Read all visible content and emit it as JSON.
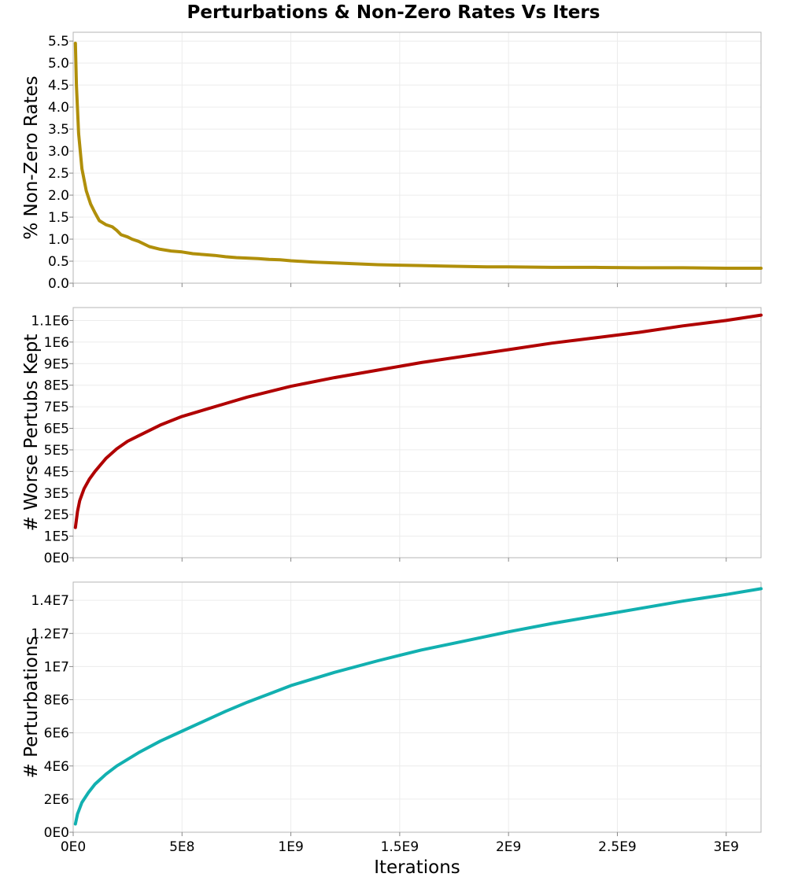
{
  "colors": {
    "nonzero": "#b08f0a",
    "worse": "#b00000",
    "perturb": "#12b0b0"
  },
  "chart_data": {
    "type": "line",
    "title": "Perturbations & Non-Zero Rates Vs Iters",
    "xlabel": "Iterations",
    "xlim": [
      0,
      3160000000
    ],
    "xticks": [
      0,
      500000000,
      1000000000,
      1500000000,
      2000000000,
      2500000000,
      3000000000
    ],
    "xtick_labels": [
      "0E0",
      "5E8",
      "1E9",
      "1.5E9",
      "2E9",
      "2.5E9",
      "3E9"
    ],
    "grid": true,
    "panels": [
      {
        "ylabel": "% Non-Zero Rates",
        "ylim": [
          0,
          5.7
        ],
        "yticks": [
          0,
          0.5,
          1,
          1.5,
          2,
          2.5,
          3,
          3.5,
          4,
          4.5,
          5,
          5.5
        ],
        "ytick_labels": [
          "0.0",
          "0.5",
          "1.0",
          "1.5",
          "2.0",
          "2.5",
          "3.0",
          "3.5",
          "4.0",
          "4.5",
          "5.0",
          "5.5"
        ],
        "series": [
          {
            "color_key": "nonzero",
            "x": [
              10000000,
              15000000,
              25000000,
              40000000,
              60000000,
              80000000,
              100000000,
              120000000,
              150000000,
              180000000,
              200000000,
              220000000,
              250000000,
              270000000,
              300000000,
              350000000,
              400000000,
              450000000,
              500000000,
              550000000,
              600000000,
              650000000,
              700000000,
              750000000,
              800000000,
              850000000,
              900000000,
              950000000,
              1000000000,
              1100000000,
              1200000000,
              1300000000,
              1400000000,
              1500000000,
              1600000000,
              1700000000,
              1800000000,
              1900000000,
              2000000000,
              2200000000,
              2400000000,
              2600000000,
              2800000000,
              3000000000,
              3160000000
            ],
            "y": [
              5.45,
              4.5,
              3.4,
              2.6,
              2.1,
              1.8,
              1.6,
              1.42,
              1.33,
              1.28,
              1.2,
              1.1,
              1.05,
              1.0,
              0.95,
              0.83,
              0.77,
              0.73,
              0.71,
              0.67,
              0.65,
              0.63,
              0.6,
              0.58,
              0.57,
              0.56,
              0.54,
              0.53,
              0.51,
              0.48,
              0.46,
              0.44,
              0.42,
              0.41,
              0.4,
              0.39,
              0.38,
              0.37,
              0.37,
              0.36,
              0.36,
              0.35,
              0.35,
              0.34,
              0.34
            ]
          }
        ]
      },
      {
        "ylabel": "# Worse Pertubs Kept",
        "ylim": [
          0,
          1160000
        ],
        "yticks": [
          0,
          100000,
          200000,
          300000,
          400000,
          500000,
          600000,
          700000,
          800000,
          900000,
          1000000,
          1100000
        ],
        "ytick_labels": [
          "0E0",
          "1E5",
          "2E5",
          "3E5",
          "4E5",
          "5E5",
          "6E5",
          "7E5",
          "8E5",
          "9E5",
          "1E6",
          "1.1E6"
        ],
        "series": [
          {
            "color_key": "worse",
            "x": [
              10000000,
              20000000,
              30000000,
              50000000,
              75000000,
              100000000,
              150000000,
              200000000,
              250000000,
              300000000,
              400000000,
              500000000,
              600000000,
              700000000,
              800000000,
              900000000,
              1000000000,
              1200000000,
              1400000000,
              1600000000,
              1800000000,
              2000000000,
              2200000000,
              2400000000,
              2600000000,
              2800000000,
              3000000000,
              3160000000
            ],
            "y": [
              140000,
              215000,
              265000,
              320000,
              365000,
              400000,
              460000,
              505000,
              540000,
              565000,
              615000,
              655000,
              685000,
              715000,
              745000,
              770000,
              795000,
              835000,
              870000,
              905000,
              935000,
              965000,
              995000,
              1020000,
              1045000,
              1075000,
              1100000,
              1125000
            ]
          }
        ]
      },
      {
        "ylabel": "# Perturbations",
        "ylim": [
          0,
          15100000
        ],
        "yticks": [
          0,
          2000000,
          4000000,
          6000000,
          8000000,
          10000000,
          12000000,
          14000000
        ],
        "ytick_labels": [
          "0E0",
          "2E6",
          "4E6",
          "6E6",
          "8E6",
          "1E7",
          "1.2E7",
          "1.4E7"
        ],
        "series": [
          {
            "color_key": "perturb",
            "x": [
              10000000,
              20000000,
              40000000,
              70000000,
              100000000,
              150000000,
              200000000,
              300000000,
              400000000,
              500000000,
              600000000,
              700000000,
              800000000,
              900000000,
              1000000000,
              1200000000,
              1400000000,
              1600000000,
              1800000000,
              2000000000,
              2200000000,
              2400000000,
              2600000000,
              2800000000,
              3000000000,
              3160000000
            ],
            "y": [
              500000,
              1100000,
              1800000,
              2400000,
              2900000,
              3500000,
              4000000,
              4800000,
              5500000,
              6100000,
              6700000,
              7300000,
              7850000,
              8350000,
              8850000,
              9650000,
              10350000,
              11000000,
              11550000,
              12100000,
              12600000,
              13050000,
              13500000,
              13950000,
              14350000,
              14700000
            ]
          }
        ]
      }
    ]
  }
}
